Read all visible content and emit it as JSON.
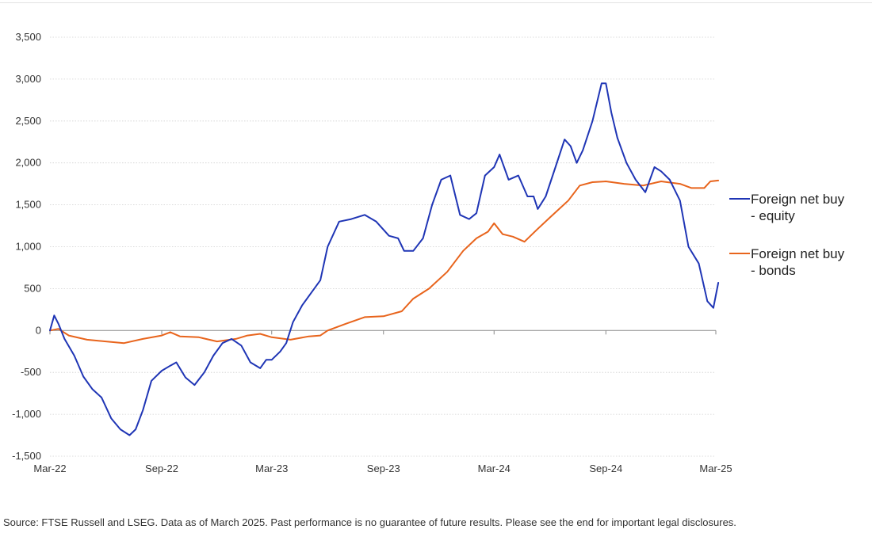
{
  "chart_data": {
    "type": "line",
    "title": "",
    "xlabel": "",
    "ylabel": "",
    "x_ticks": [
      "Mar-22",
      "Sep-22",
      "Mar-23",
      "Sep-23",
      "Mar-24",
      "Sep-24",
      "Mar-25"
    ],
    "y_ticks": [
      "3,500",
      "3,000",
      "2,500",
      "2,000",
      "1,500",
      "1,000",
      "500",
      "0",
      "-500",
      "-1,000",
      "-1,500"
    ],
    "ylim": [
      -1500,
      3500
    ],
    "xlim": [
      "2022-03",
      "2025-03"
    ],
    "grid": "horizontal dotted",
    "legend_position": "right",
    "series": [
      {
        "name": "Foreign net buy - equity",
        "legend_lines": [
          "Foreign net buy",
          "- equity"
        ],
        "color": "#1f35b5",
        "points": [
          [
            "2022-03-01",
            0
          ],
          [
            "2022-03-08",
            180
          ],
          [
            "2022-03-15",
            80
          ],
          [
            "2022-03-25",
            -100
          ],
          [
            "2022-04-10",
            -300
          ],
          [
            "2022-04-25",
            -550
          ],
          [
            "2022-05-10",
            -700
          ],
          [
            "2022-05-25",
            -800
          ],
          [
            "2022-06-10",
            -1050
          ],
          [
            "2022-06-25",
            -1180
          ],
          [
            "2022-07-10",
            -1250
          ],
          [
            "2022-07-20",
            -1180
          ],
          [
            "2022-08-01",
            -950
          ],
          [
            "2022-08-15",
            -600
          ],
          [
            "2022-09-01",
            -480
          ],
          [
            "2022-09-15",
            -420
          ],
          [
            "2022-09-25",
            -380
          ],
          [
            "2022-10-10",
            -560
          ],
          [
            "2022-10-25",
            -650
          ],
          [
            "2022-11-10",
            -500
          ],
          [
            "2022-11-25",
            -300
          ],
          [
            "2022-12-10",
            -150
          ],
          [
            "2022-12-25",
            -100
          ],
          [
            "2023-01-10",
            -180
          ],
          [
            "2023-01-25",
            -380
          ],
          [
            "2023-02-10",
            -450
          ],
          [
            "2023-02-20",
            -350
          ],
          [
            "2023-03-01",
            -350
          ],
          [
            "2023-03-15",
            -250
          ],
          [
            "2023-03-25",
            -150
          ],
          [
            "2023-04-05",
            100
          ],
          [
            "2023-04-20",
            300
          ],
          [
            "2023-05-05",
            450
          ],
          [
            "2023-05-20",
            600
          ],
          [
            "2023-06-01",
            1000
          ],
          [
            "2023-06-20",
            1300
          ],
          [
            "2023-07-10",
            1330
          ],
          [
            "2023-08-01",
            1380
          ],
          [
            "2023-08-20",
            1300
          ],
          [
            "2023-09-10",
            1130
          ],
          [
            "2023-09-25",
            1100
          ],
          [
            "2023-10-05",
            950
          ],
          [
            "2023-10-20",
            950
          ],
          [
            "2023-11-05",
            1100
          ],
          [
            "2023-11-20",
            1500
          ],
          [
            "2023-12-05",
            1800
          ],
          [
            "2023-12-20",
            1850
          ],
          [
            "2024-01-05",
            1380
          ],
          [
            "2024-01-20",
            1330
          ],
          [
            "2024-02-01",
            1400
          ],
          [
            "2024-02-15",
            1850
          ],
          [
            "2024-03-01",
            1950
          ],
          [
            "2024-03-10",
            2100
          ],
          [
            "2024-03-25",
            1800
          ],
          [
            "2024-04-10",
            1850
          ],
          [
            "2024-04-25",
            1600
          ],
          [
            "2024-05-05",
            1600
          ],
          [
            "2024-05-12",
            1450
          ],
          [
            "2024-05-25",
            1600
          ],
          [
            "2024-06-10",
            1950
          ],
          [
            "2024-06-25",
            2280
          ],
          [
            "2024-07-05",
            2200
          ],
          [
            "2024-07-15",
            2000
          ],
          [
            "2024-07-25",
            2150
          ],
          [
            "2024-08-10",
            2500
          ],
          [
            "2024-08-25",
            2950
          ],
          [
            "2024-09-01",
            2950
          ],
          [
            "2024-09-10",
            2600
          ],
          [
            "2024-09-20",
            2300
          ],
          [
            "2024-10-05",
            2000
          ],
          [
            "2024-10-20",
            1800
          ],
          [
            "2024-11-05",
            1650
          ],
          [
            "2024-11-20",
            1950
          ],
          [
            "2024-12-01",
            1900
          ],
          [
            "2024-12-15",
            1800
          ],
          [
            "2025-01-01",
            1550
          ],
          [
            "2025-01-15",
            1000
          ],
          [
            "2025-02-01",
            800
          ],
          [
            "2025-02-15",
            350
          ],
          [
            "2025-02-25",
            270
          ],
          [
            "2025-03-05",
            570
          ]
        ]
      },
      {
        "name": "Foreign net buy - bonds",
        "legend_lines": [
          "Foreign net buy",
          "- bonds"
        ],
        "color": "#e8641c",
        "points": [
          [
            "2022-03-01",
            0
          ],
          [
            "2022-03-15",
            20
          ],
          [
            "2022-04-01",
            -60
          ],
          [
            "2022-05-01",
            -110
          ],
          [
            "2022-06-01",
            -130
          ],
          [
            "2022-07-01",
            -150
          ],
          [
            "2022-08-01",
            -100
          ],
          [
            "2022-09-01",
            -60
          ],
          [
            "2022-09-15",
            -20
          ],
          [
            "2022-10-01",
            -70
          ],
          [
            "2022-11-01",
            -80
          ],
          [
            "2022-12-01",
            -130
          ],
          [
            "2023-01-01",
            -100
          ],
          [
            "2023-01-20",
            -60
          ],
          [
            "2023-02-10",
            -40
          ],
          [
            "2023-03-01",
            -80
          ],
          [
            "2023-04-01",
            -110
          ],
          [
            "2023-05-01",
            -70
          ],
          [
            "2023-05-20",
            -60
          ],
          [
            "2023-06-01",
            0
          ],
          [
            "2023-07-01",
            80
          ],
          [
            "2023-08-01",
            160
          ],
          [
            "2023-09-01",
            170
          ],
          [
            "2023-10-01",
            230
          ],
          [
            "2023-10-20",
            380
          ],
          [
            "2023-11-15",
            500
          ],
          [
            "2023-12-15",
            700
          ],
          [
            "2024-01-10",
            950
          ],
          [
            "2024-02-01",
            1100
          ],
          [
            "2024-02-20",
            1180
          ],
          [
            "2024-03-01",
            1280
          ],
          [
            "2024-03-15",
            1150
          ],
          [
            "2024-04-01",
            1120
          ],
          [
            "2024-04-20",
            1060
          ],
          [
            "2024-05-10",
            1200
          ],
          [
            "2024-06-01",
            1350
          ],
          [
            "2024-07-01",
            1550
          ],
          [
            "2024-07-20",
            1730
          ],
          [
            "2024-08-10",
            1770
          ],
          [
            "2024-09-01",
            1780
          ],
          [
            "2024-10-01",
            1750
          ],
          [
            "2024-11-01",
            1730
          ],
          [
            "2024-12-01",
            1780
          ],
          [
            "2025-01-01",
            1750
          ],
          [
            "2025-01-20",
            1700
          ],
          [
            "2025-02-10",
            1700
          ],
          [
            "2025-02-20",
            1780
          ],
          [
            "2025-03-05",
            1790
          ]
        ]
      }
    ]
  },
  "footer": {
    "source": "Source: FTSE Russell and LSEG. Data as of March 2025. Past performance is no guarantee of future results. Please see the end for important legal disclosures."
  }
}
